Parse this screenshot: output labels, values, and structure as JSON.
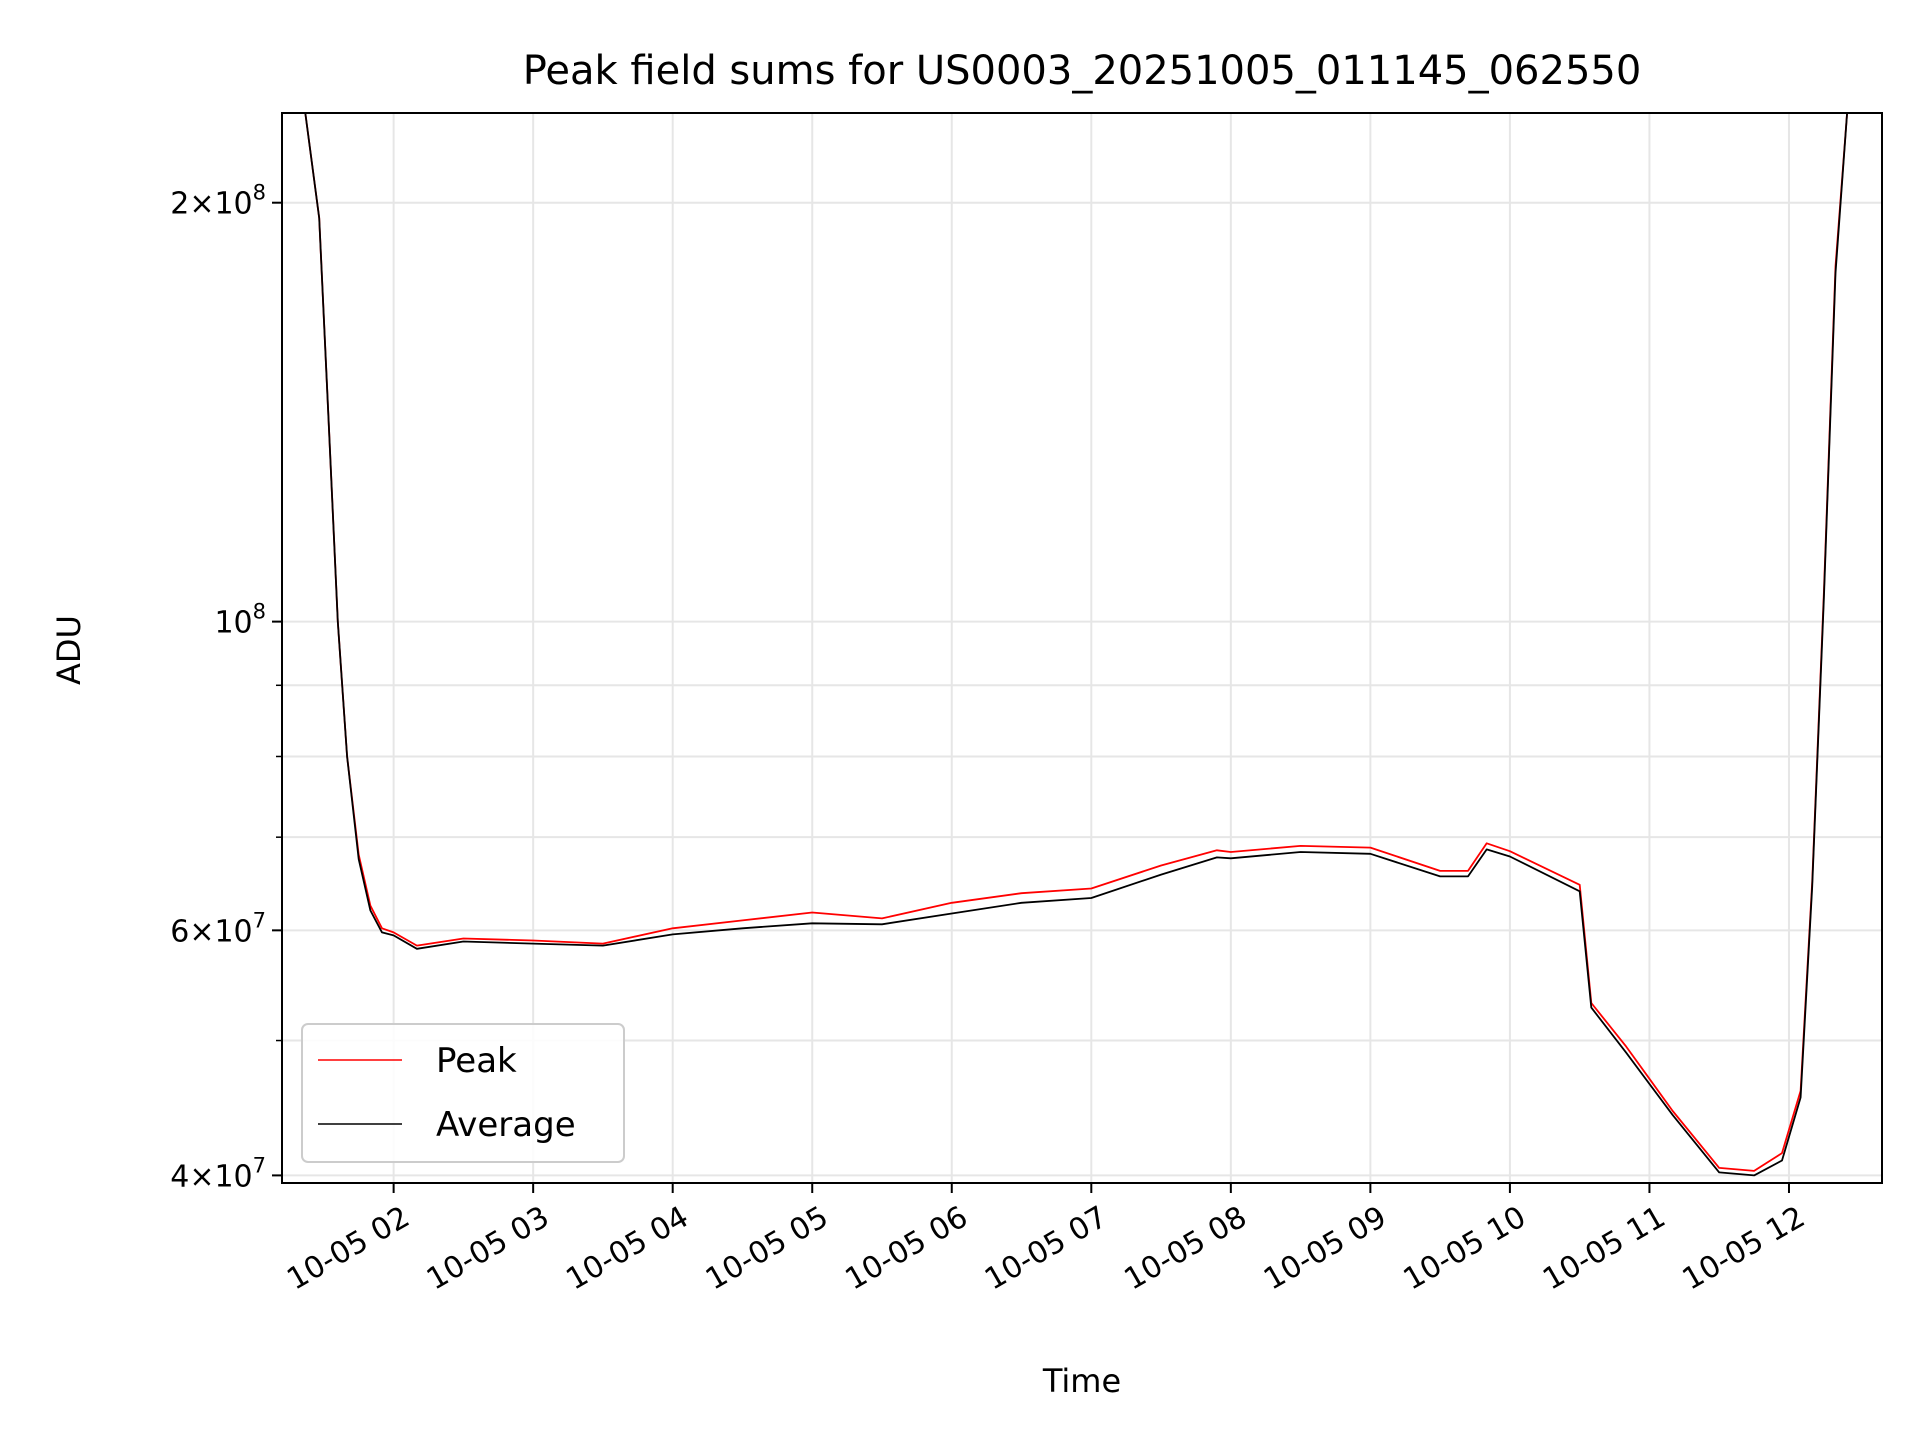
{
  "chart_data": {
    "type": "line",
    "title": "Peak field sums for US0003_20251005_011145_062550",
    "xlabel": "Time",
    "ylabel": "ADU",
    "x_scale": "time",
    "y_scale": "log",
    "xlim": [
      "2025-10-05 01:12",
      "2025-10-05 12:40"
    ],
    "ylim": [
      39500000,
      232000000
    ],
    "grid": true,
    "legend": {
      "placement": "lower-left"
    },
    "x_ticks": [
      {
        "t": "2025-10-05 02:00",
        "label": "10-05 02"
      },
      {
        "t": "2025-10-05 03:00",
        "label": "10-05 03"
      },
      {
        "t": "2025-10-05 04:00",
        "label": "10-05 04"
      },
      {
        "t": "2025-10-05 05:00",
        "label": "10-05 05"
      },
      {
        "t": "2025-10-05 06:00",
        "label": "10-05 06"
      },
      {
        "t": "2025-10-05 07:00",
        "label": "10-05 07"
      },
      {
        "t": "2025-10-05 08:00",
        "label": "10-05 08"
      },
      {
        "t": "2025-10-05 09:00",
        "label": "10-05 09"
      },
      {
        "t": "2025-10-05 10:00",
        "label": "10-05 10"
      },
      {
        "t": "2025-10-05 11:00",
        "label": "10-05 11"
      },
      {
        "t": "2025-10-05 12:00",
        "label": "10-05 12"
      }
    ],
    "y_major_ticks": [
      {
        "v": 40000000,
        "mant": "4",
        "exp": "7"
      },
      {
        "v": 60000000,
        "mant": "6",
        "exp": "7"
      },
      {
        "v": 100000000,
        "mant": "",
        "exp": "8"
      },
      {
        "v": 200000000,
        "mant": "2",
        "exp": "8"
      }
    ],
    "y_minor_ticks": [
      50000000,
      70000000,
      80000000,
      90000000
    ],
    "series": [
      {
        "name": "Peak",
        "color": "#ff0000",
        "x": [
          "2025-10-05 01:12",
          "2025-10-05 01:22",
          "2025-10-05 01:28",
          "2025-10-05 01:32",
          "2025-10-05 01:36",
          "2025-10-05 01:40",
          "2025-10-05 01:45",
          "2025-10-05 01:50",
          "2025-10-05 01:55",
          "2025-10-05 02:00",
          "2025-10-05 02:10",
          "2025-10-05 02:30",
          "2025-10-05 03:00",
          "2025-10-05 03:30",
          "2025-10-05 04:00",
          "2025-10-05 04:30",
          "2025-10-05 05:00",
          "2025-10-05 05:30",
          "2025-10-05 06:00",
          "2025-10-05 06:30",
          "2025-10-05 07:00",
          "2025-10-05 07:30",
          "2025-10-05 07:54",
          "2025-10-05 08:00",
          "2025-10-05 08:30",
          "2025-10-05 09:00",
          "2025-10-05 09:30",
          "2025-10-05 09:42",
          "2025-10-05 09:50",
          "2025-10-05 10:00",
          "2025-10-05 10:30",
          "2025-10-05 10:35",
          "2025-10-05 10:50",
          "2025-10-05 11:10",
          "2025-10-05 11:30",
          "2025-10-05 11:45",
          "2025-10-05 11:57",
          "2025-10-05 12:05",
          "2025-10-05 12:10",
          "2025-10-05 12:15",
          "2025-10-05 12:20",
          "2025-10-05 12:25",
          "2025-10-05 12:30",
          "2025-10-05 12:40"
        ],
        "y": [
          232000000,
          232000000,
          195000000,
          140000000,
          100000000,
          80000000,
          68000000,
          62500000,
          60200000,
          59800000,
          58500000,
          59200000,
          59000000,
          58700000,
          60200000,
          61000000,
          61800000,
          61200000,
          62800000,
          63800000,
          64300000,
          66800000,
          68500000,
          68300000,
          69000000,
          68800000,
          66200000,
          66200000,
          69300000,
          68400000,
          64700000,
          53200000,
          49500000,
          44500000,
          40500000,
          40300000,
          41500000,
          46000000,
          65000000,
          105000000,
          180000000,
          232000000,
          232000000,
          232000000
        ]
      },
      {
        "name": "Average",
        "color": "#000000",
        "x": [
          "2025-10-05 01:12",
          "2025-10-05 01:22",
          "2025-10-05 01:28",
          "2025-10-05 01:32",
          "2025-10-05 01:36",
          "2025-10-05 01:40",
          "2025-10-05 01:45",
          "2025-10-05 01:50",
          "2025-10-05 01:55",
          "2025-10-05 02:00",
          "2025-10-05 02:10",
          "2025-10-05 02:30",
          "2025-10-05 03:00",
          "2025-10-05 03:30",
          "2025-10-05 04:00",
          "2025-10-05 04:30",
          "2025-10-05 05:00",
          "2025-10-05 05:30",
          "2025-10-05 06:00",
          "2025-10-05 06:30",
          "2025-10-05 07:00",
          "2025-10-05 07:30",
          "2025-10-05 07:54",
          "2025-10-05 08:00",
          "2025-10-05 08:30",
          "2025-10-05 09:00",
          "2025-10-05 09:30",
          "2025-10-05 09:42",
          "2025-10-05 09:50",
          "2025-10-05 10:00",
          "2025-10-05 10:30",
          "2025-10-05 10:35",
          "2025-10-05 10:50",
          "2025-10-05 11:10",
          "2025-10-05 11:30",
          "2025-10-05 11:45",
          "2025-10-05 11:57",
          "2025-10-05 12:05",
          "2025-10-05 12:10",
          "2025-10-05 12:15",
          "2025-10-05 12:20",
          "2025-10-05 12:25",
          "2025-10-05 12:30",
          "2025-10-05 12:40"
        ],
        "y": [
          232000000,
          232000000,
          195000000,
          140000000,
          100000000,
          80000000,
          67500000,
          62000000,
          59800000,
          59500000,
          58200000,
          58900000,
          58700000,
          58500000,
          59600000,
          60200000,
          60700000,
          60600000,
          61700000,
          62800000,
          63300000,
          65800000,
          67700000,
          67600000,
          68300000,
          68100000,
          65600000,
          65600000,
          68600000,
          67800000,
          64000000,
          52800000,
          49000000,
          44200000,
          40200000,
          40000000,
          41000000,
          45500000,
          64500000,
          104000000,
          178000000,
          232000000,
          232000000,
          232000000
        ]
      }
    ]
  }
}
